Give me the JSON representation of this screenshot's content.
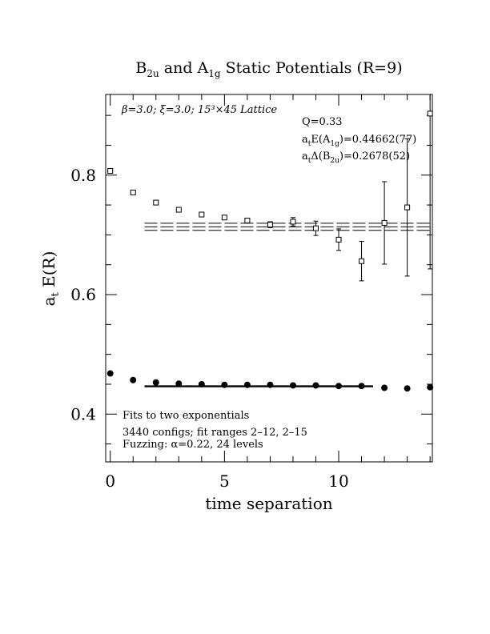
{
  "chart_data": {
    "type": "scatter",
    "title": {
      "part1": "B",
      "sub1": "2u",
      "part2": " and A",
      "sub2": "1g",
      "part3": " Static Potentials (R=9)"
    },
    "xlabel": "time separation",
    "ylabel": {
      "main": "a",
      "sub": "t",
      "rest": " E(R)"
    },
    "xlim": [
      -0.2,
      14.1
    ],
    "ylim": [
      0.32,
      0.935
    ],
    "xticks": [
      0,
      5,
      10
    ],
    "yticks": [
      0.4,
      0.6,
      0.8
    ],
    "ytick_labels": [
      "0.4",
      "0.6",
      "0.8"
    ],
    "xtick_labels": [
      "0",
      "5",
      "10"
    ],
    "annotations": {
      "lattice": "β=3.0; ξ=3.0; 15³×45 Lattice",
      "q": "Q=0.33",
      "energy": {
        "pre": "a",
        "sub1": "t",
        "mid": "E(A",
        "sub2": "1g",
        "post": ")=0.44662(77)"
      },
      "gap": {
        "pre": "a",
        "sub1": "t",
        "mid": "Δ(B",
        "sub2": "2u",
        "post": ")=0.2678(52)"
      },
      "fits": "Fits to two exponentials",
      "configs": "3440 configs; fit ranges 2–12, 2–15",
      "fuzzing": "Fuzzing: α=0.22, 24 levels"
    },
    "series": [
      {
        "name": "B2u",
        "marker": "open-square",
        "x": [
          0,
          1,
          2,
          3,
          4,
          5,
          6,
          7,
          8,
          9,
          10,
          11,
          12,
          13,
          14
        ],
        "y": [
          0.807,
          0.771,
          0.754,
          0.742,
          0.734,
          0.729,
          0.724,
          0.717,
          0.722,
          0.711,
          0.692,
          0.656,
          0.72,
          0.746,
          0.903
        ],
        "err": [
          0.001,
          0.001,
          0.001,
          0.002,
          0.002,
          0.003,
          0.004,
          0.005,
          0.007,
          0.012,
          0.018,
          0.033,
          0.069,
          0.115,
          0.26
        ]
      },
      {
        "name": "A1g",
        "marker": "filled-circle",
        "x": [
          0,
          1,
          2,
          3,
          4,
          5,
          6,
          7,
          8,
          9,
          10,
          11,
          12,
          13,
          14
        ],
        "y": [
          0.468,
          0.457,
          0.453,
          0.451,
          0.45,
          0.449,
          0.449,
          0.449,
          0.448,
          0.448,
          0.447,
          0.447,
          0.444,
          0.443,
          0.445
        ],
        "err": [
          0,
          0,
          0,
          0,
          0,
          0,
          0,
          0,
          0,
          0,
          0,
          0,
          0,
          0,
          0
        ]
      }
    ],
    "fit_bands": [
      {
        "series": "B2u",
        "x_range": [
          1.5,
          14.1
        ],
        "center": 0.7135,
        "halfwidth": 0.006
      },
      {
        "series": "A1g",
        "x_range": [
          1.5,
          11.5
        ],
        "center": 0.4466,
        "halfwidth": 0.0008
      }
    ]
  }
}
